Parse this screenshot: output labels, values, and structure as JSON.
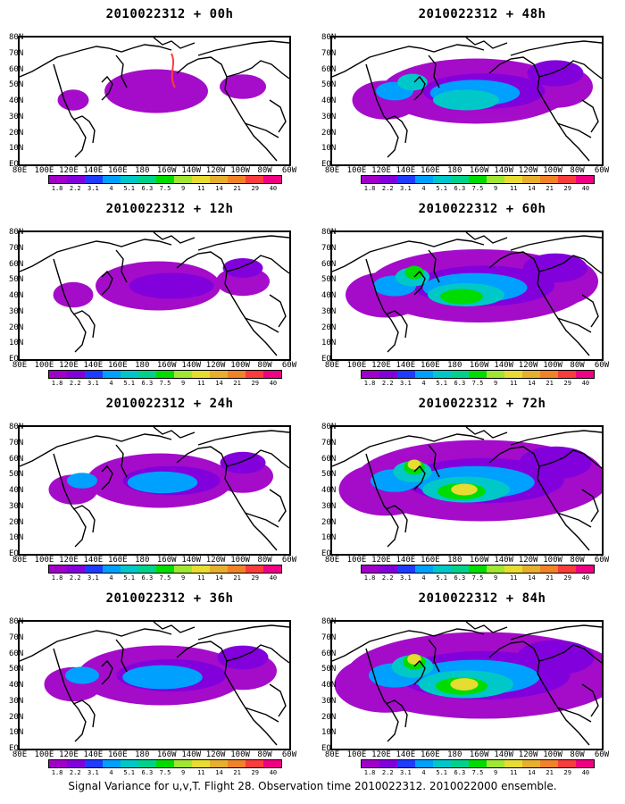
{
  "footer": "Signal Variance for u,v,T. Flight 28. Observation time 2010022312. 2010022000 ensemble.",
  "panels": [
    {
      "title": "2010022312 + 00h",
      "intensity": 0.15
    },
    {
      "title": "2010022312 + 48h",
      "intensity": 0.55
    },
    {
      "title": "2010022312 + 12h",
      "intensity": 0.25
    },
    {
      "title": "2010022312 + 60h",
      "intensity": 0.7
    },
    {
      "title": "2010022312 + 24h",
      "intensity": 0.35
    },
    {
      "title": "2010022312 + 72h",
      "intensity": 0.85
    },
    {
      "title": "2010022312 + 36h",
      "intensity": 0.45
    },
    {
      "title": "2010022312 + 84h",
      "intensity": 0.95
    }
  ],
  "x_axis_labels": [
    "80E",
    "100E",
    "120E",
    "140E",
    "160E",
    "180",
    "160W",
    "140W",
    "120W",
    "100W",
    "80W",
    "60W"
  ],
  "y_axis_labels": [
    "80N",
    "70N",
    "60N",
    "50N",
    "40N",
    "30N",
    "20N",
    "10N",
    "EQ"
  ],
  "colorbar": {
    "levels": [
      "1.8",
      "2.2",
      "3.1",
      "4",
      "5.1",
      "6.3",
      "7.5",
      "9",
      "11",
      "14",
      "21",
      "29",
      "40"
    ],
    "colors": [
      "#a000c8",
      "#8200dc",
      "#1e3cff",
      "#00a0ff",
      "#00c8c8",
      "#00d28c",
      "#00dc00",
      "#a0e632",
      "#e6dc32",
      "#e6af2d",
      "#f08228",
      "#fa3c3c",
      "#f00082"
    ]
  }
}
